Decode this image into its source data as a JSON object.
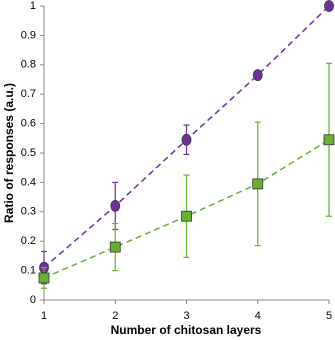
{
  "chart_data": {
    "type": "scatter",
    "x_label": "Number of chitosan layers",
    "y_label": "Ratio of responses (a.u.)",
    "x": [
      1,
      2,
      3,
      4,
      5
    ],
    "xlim": [
      1,
      5
    ],
    "xticks": [
      1,
      2,
      3,
      4,
      5
    ],
    "ylim": [
      0,
      1
    ],
    "yticks": [
      0,
      0.1,
      0.2,
      0.3,
      0.4,
      0.5,
      0.6,
      0.7,
      0.8,
      0.9,
      1
    ],
    "grid": false,
    "line_style": "dashed",
    "series": [
      {
        "color": "#7030a0",
        "marker": "circle",
        "values": [
          0.11,
          0.32,
          0.545,
          0.765,
          1.0
        ],
        "errors": [
          0.055,
          0.08,
          0.05,
          0.01,
          0.005
        ]
      },
      {
        "color": "#66b032",
        "marker": "square",
        "values": [
          0.075,
          0.18,
          0.285,
          0.395,
          0.545
        ],
        "errors": [
          0.035,
          0.08,
          0.14,
          0.21,
          0.26
        ]
      }
    ]
  }
}
